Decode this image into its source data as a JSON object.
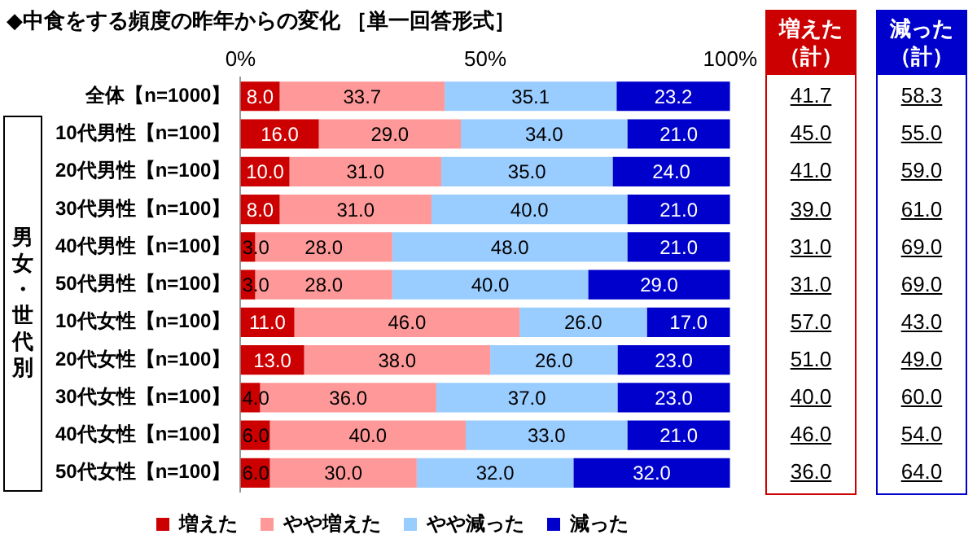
{
  "chart_data": [
    {
      "type": "bar",
      "title": "◆中食をする頻度の昨年からの変化 ［単一回答形式］",
      "orientation": "horizontal",
      "stacked": true,
      "categories": [
        "全体【n=1000】",
        "10代男性【n=100】",
        "20代男性【n=100】",
        "30代男性【n=100】",
        "40代男性【n=100】",
        "50代男性【n=100】",
        "10代女性【n=100】",
        "20代女性【n=100】",
        "30代女性【n=100】",
        "40代女性【n=100】",
        "50代女性【n=100】"
      ],
      "series": [
        {
          "name": "増えた",
          "color": "#cc0000",
          "values": [
            8.0,
            16.0,
            10.0,
            8.0,
            3.0,
            3.0,
            11.0,
            13.0,
            4.0,
            6.0,
            6.0
          ],
          "value_labels": [
            "8.0",
            "16.0",
            "10.0",
            "8.0",
            "3.0",
            "3.0",
            "11.0",
            "13.0",
            "4.0",
            "6.0",
            "6.0"
          ]
        },
        {
          "name": "やや増えた",
          "color": "#ff9999",
          "values": [
            33.7,
            29.0,
            31.0,
            31.0,
            28.0,
            28.0,
            46.0,
            38.0,
            36.0,
            40.0,
            30.0
          ],
          "value_labels": [
            "33.7",
            "29.0",
            "31.0",
            "31.0",
            "28.0",
            "28.0",
            "46.0",
            "38.0",
            "36.0",
            "40.0",
            "30.0"
          ]
        },
        {
          "name": "やや減った",
          "color": "#99ccff",
          "values": [
            35.1,
            34.0,
            35.0,
            40.0,
            48.0,
            40.0,
            26.0,
            26.0,
            37.0,
            33.0,
            32.0
          ],
          "value_labels": [
            "35.1",
            "34.0",
            "35.0",
            "40.0",
            "48.0",
            "40.0",
            "26.0",
            "26.0",
            "37.0",
            "33.0",
            "32.0"
          ]
        },
        {
          "name": "減った",
          "color": "#0000cc",
          "values": [
            23.2,
            21.0,
            24.0,
            21.0,
            21.0,
            29.0,
            17.0,
            23.0,
            23.0,
            21.0,
            32.0
          ],
          "value_labels": [
            "23.2",
            "21.0",
            "24.0",
            "21.0",
            "21.0",
            "29.0",
            "17.0",
            "23.0",
            "23.0",
            "21.0",
            "32.0"
          ]
        }
      ],
      "xlim": [
        0,
        100
      ],
      "xticks": [
        {
          "value": 0,
          "label": "0%"
        },
        {
          "value": 50,
          "label": "50%"
        },
        {
          "value": 100,
          "label": "100%"
        }
      ],
      "grid": false,
      "legend": "bottom",
      "annotations": [
        "男女・世代別"
      ]
    },
    {
      "type": "other",
      "annotations": [
        "増えた（計）",
        "41.7",
        "45.0",
        "41.0",
        "39.0",
        "31.0",
        "31.0",
        "57.0",
        "51.0",
        "40.0",
        "46.0",
        "36.0",
        "減った（計）",
        "58.3",
        "55.0",
        "59.0",
        "61.0",
        "69.0",
        "69.0",
        "43.0",
        "49.0",
        "60.0",
        "54.0",
        "64.0"
      ]
    }
  ]
}
